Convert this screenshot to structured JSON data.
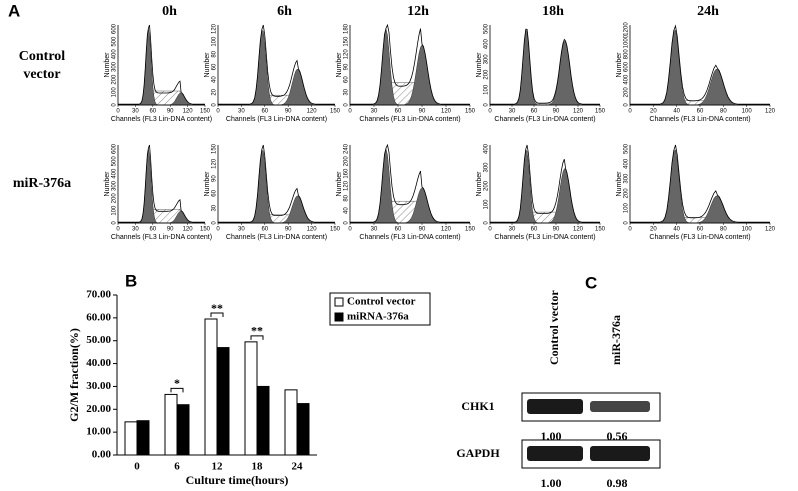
{
  "panel_a": {
    "label": "A",
    "columns": [
      "0h",
      "6h",
      "12h",
      "18h",
      "24h"
    ],
    "rows": [
      "Control vector",
      "miR-376a"
    ],
    "y_label": "Number",
    "x_label": "Channels (FL3 Lin-DNA content)",
    "xticks": [
      [
        "0",
        "30",
        "60",
        "90",
        "120",
        "150"
      ],
      [
        "0",
        "30",
        "60",
        "90",
        "120",
        "150"
      ],
      [
        "0",
        "30",
        "60",
        "90",
        "120",
        "150"
      ],
      [
        "0",
        "30",
        "60",
        "90",
        "120",
        "150"
      ],
      [
        "0",
        "20",
        "40",
        "60",
        "80",
        "100",
        "120"
      ]
    ],
    "yticks": [
      [
        [
          "0",
          "100",
          "200",
          "300",
          "400",
          "500",
          "600"
        ],
        [
          "0",
          "20",
          "40",
          "60",
          "80",
          "100",
          "120"
        ],
        [
          "0",
          "30",
          "60",
          "90",
          "120",
          "150",
          "180"
        ],
        [
          "0",
          "100",
          "200",
          "300",
          "400",
          "500"
        ],
        [
          "0",
          "200",
          "400",
          "600",
          "800",
          "1000",
          "1200"
        ]
      ],
      [
        [
          "0",
          "100",
          "200",
          "300",
          "400",
          "500",
          "600"
        ],
        [
          "0",
          "30",
          "60",
          "90",
          "120",
          "150"
        ],
        [
          "0",
          "40",
          "80",
          "120",
          "160",
          "200",
          "240"
        ],
        [
          "0",
          "100",
          "200",
          "300",
          "400"
        ],
        [
          "0",
          "100",
          "200",
          "300",
          "400",
          "500"
        ]
      ]
    ]
  },
  "chart_data": {
    "type": "bar",
    "label": "B",
    "y_label": "G2/M fraction(%)",
    "x_label": "Culture time(hours)",
    "categories": [
      "0",
      "6",
      "12",
      "18",
      "24"
    ],
    "series": [
      {
        "name": "Control vector",
        "color": "#ffffff",
        "values": [
          14.5,
          26.5,
          59.5,
          49.5,
          28.5
        ]
      },
      {
        "name": "miRNA-376a",
        "color": "#000000",
        "values": [
          15,
          22,
          47,
          30,
          22.5
        ]
      }
    ],
    "ylim": [
      0,
      70
    ],
    "yticks": [
      {
        "value": 0,
        "label": "0.00"
      },
      {
        "value": 10,
        "label": "10.00"
      },
      {
        "value": 20,
        "label": "20.00"
      },
      {
        "value": 30,
        "label": "30.00"
      },
      {
        "value": 40,
        "label": "40.00"
      },
      {
        "value": 50,
        "label": "50.00"
      },
      {
        "value": 60,
        "label": "60.00"
      },
      {
        "value": 70,
        "label": "70.00"
      }
    ],
    "legend": "upper right",
    "annotations": [
      "*",
      "**",
      "**"
    ]
  },
  "panel_c": {
    "label": "C",
    "columns": [
      "Control vector",
      "miR-376a"
    ],
    "rows": [
      {
        "name": "CHK1",
        "values": [
          "1.00",
          "0.56"
        ]
      },
      {
        "name": "GAPDH",
        "values": [
          "1.00",
          "0.98"
        ]
      }
    ]
  }
}
